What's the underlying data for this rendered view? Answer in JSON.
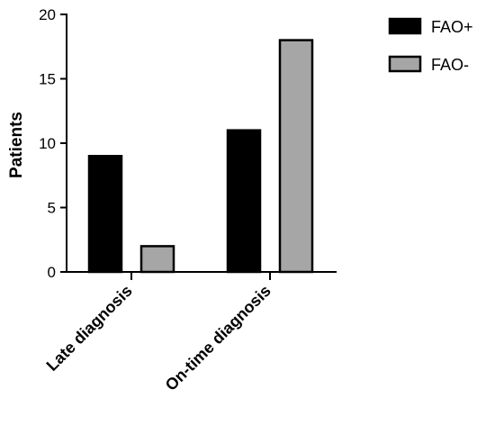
{
  "chart_data": {
    "type": "bar",
    "title": "",
    "xlabel": "",
    "ylabel": "Patients",
    "categories": [
      "Late diagnosis",
      "On-time diagnosis"
    ],
    "series": [
      {
        "name": "FAO+",
        "values": [
          9,
          11
        ],
        "color": "#000000"
      },
      {
        "name": "FAO-",
        "values": [
          2,
          18
        ],
        "color": "#a6a6a6"
      }
    ],
    "ylim": [
      0,
      20
    ],
    "yticks": [
      0,
      5,
      10,
      15,
      20
    ],
    "grid": false,
    "legend_position": "top-right"
  }
}
